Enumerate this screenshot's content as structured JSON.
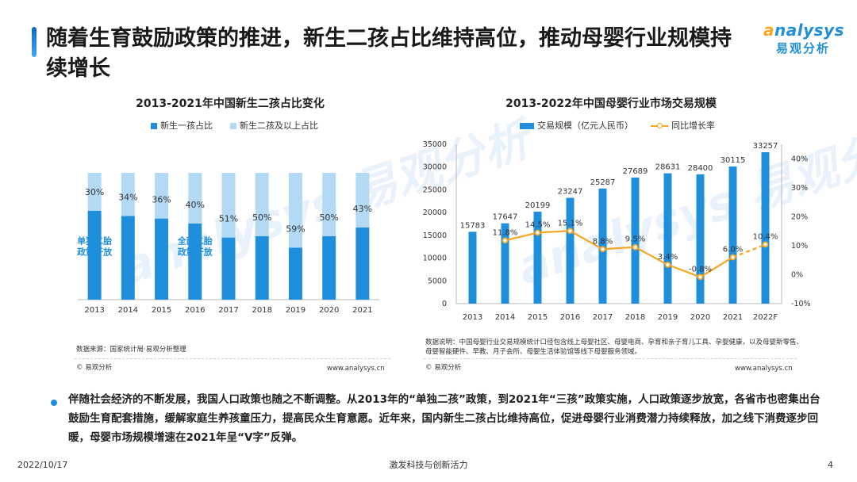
{
  "header": {
    "title": "随着生育鼓励政策的推进，新生二孩占比维持高位，推动母婴行业规模持续增长",
    "logo_en_a": "a",
    "logo_en_rest": "nalysys",
    "logo_cn": "易观分析"
  },
  "watermark": {
    "text": "analysys 易观分析"
  },
  "left_chart": {
    "legend": [
      "新生一孩占比",
      "新生二孩及以上占比"
    ],
    "source": "数据来源：国家统计局·易观分析整理",
    "copyright": "© 易观分析",
    "url": "www.analysys.cn"
  },
  "right_chart": {
    "legend": [
      "交易规模（亿元人民币）",
      "同比增长率"
    ],
    "note": "数据说明：中国母婴行业交易规模统计口径包含线上母婴社区、母婴电商、孕育和亲子育儿工具、孕婴健康，以及母婴新零售、母婴智能硬件、早教、月子会所、母婴生活体验馆等线下母婴服务领域。",
    "copyright": "© 易观分析",
    "url": "www.analysys.cn"
  },
  "chart_data": [
    {
      "type": "bar",
      "stacked": true,
      "title": "2013-2021年中国新生二孩占比变化",
      "categories": [
        "2013",
        "2014",
        "2015",
        "2016",
        "2017",
        "2018",
        "2019",
        "2020",
        "2021"
      ],
      "series": [
        {
          "name": "新生一孩占比",
          "values": [
            70,
            66,
            64,
            60,
            49,
            50,
            41,
            50,
            57
          ],
          "color": "#1f8fdc"
        },
        {
          "name": "新生二孩及以上占比",
          "values": [
            30,
            34,
            36,
            40,
            51,
            50,
            59,
            50,
            43
          ],
          "color": "#b3daf5"
        }
      ],
      "data_labels": [
        "30%",
        "34%",
        "36%",
        "40%",
        "51%",
        "50%",
        "59%",
        "50%",
        "43%"
      ],
      "annotations": [
        {
          "category": "2013",
          "text": "单独二胎\n政策开放"
        },
        {
          "category": "2016",
          "text": "全面二胎\n政策开放"
        }
      ],
      "ylim": [
        0,
        100
      ]
    },
    {
      "type": "bar",
      "title": "2013-2022年中国母婴行业市场交易规模",
      "categories": [
        "2013",
        "2014",
        "2015",
        "2016",
        "2017",
        "2018",
        "2019",
        "2020",
        "2021",
        "2022F"
      ],
      "series": [
        {
          "name": "交易规模（亿元人民币）",
          "type": "bar",
          "values": [
            15783,
            17647,
            20199,
            23247,
            25287,
            27689,
            28631,
            28400,
            30115,
            33257
          ],
          "color": "#1f8fdc"
        },
        {
          "name": "同比增长率",
          "type": "line",
          "values": [
            null,
            11.8,
            14.5,
            15.1,
            8.8,
            9.5,
            3.4,
            -0.8,
            6.0,
            10.4
          ],
          "labels": [
            "",
            "11.8%",
            "14.5%",
            "15.1%",
            "8.8%",
            "9.5%",
            "3.4%",
            "-0.8%",
            "6.0%",
            "10.4%"
          ],
          "color": "#f6a623",
          "forecast_from": "2021"
        }
      ],
      "y_left": {
        "lim": [
          0,
          35000
        ],
        "ticks": [
          "0",
          "5000",
          "10000",
          "15000",
          "20000",
          "25000",
          "30000",
          "35000"
        ]
      },
      "y_right": {
        "lim": [
          -10,
          45
        ],
        "ticks": [
          "-10%",
          "0%",
          "10%",
          "20%",
          "30%",
          "40%"
        ]
      }
    }
  ],
  "body": {
    "text": "伴随社会经济的不断发展，我国人口政策也随之不断调整。从2013年的“单独二孩”政策，到2021年“三孩”政策实施，人口政策逐步放宽，各省市也密集出台鼓励生育配套措施，缓解家庭生养孩童压力，提高民众生育意愿。近年来，国内新生二孩占比维持高位，促进母婴行业消费潜力持续释放，加之线下消费逐步回暖，母婴市场规模增速在2021年呈“V字”反弹。"
  },
  "footer": {
    "date": "2022/10/17",
    "tagline": "激发科技与创新活力",
    "page": "4"
  }
}
